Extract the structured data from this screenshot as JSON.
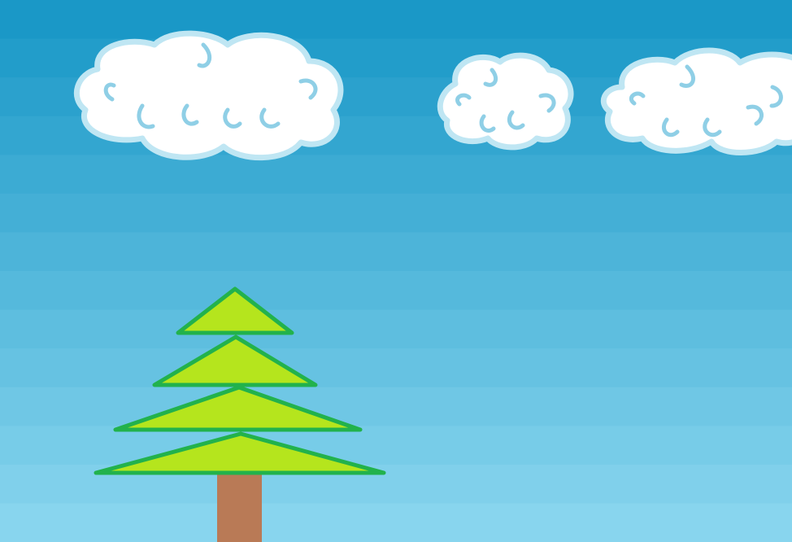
{
  "scene": {
    "sky": {
      "top_color": "#1a98c7",
      "bottom_color": "#88d5ee",
      "band_count": 14
    },
    "clouds": [
      {
        "name": "cloud-large-left"
      },
      {
        "name": "cloud-small-middle"
      },
      {
        "name": "cloud-right-edge"
      }
    ],
    "tree": {
      "foliage_color": "#b5e51d",
      "outline_color": "#22b24c",
      "trunk_color": "#b97a56"
    },
    "cloud_style": {
      "fill": "#ffffff",
      "outline": "#bfe6f3",
      "outline_dark": "#8fcfe6"
    }
  }
}
